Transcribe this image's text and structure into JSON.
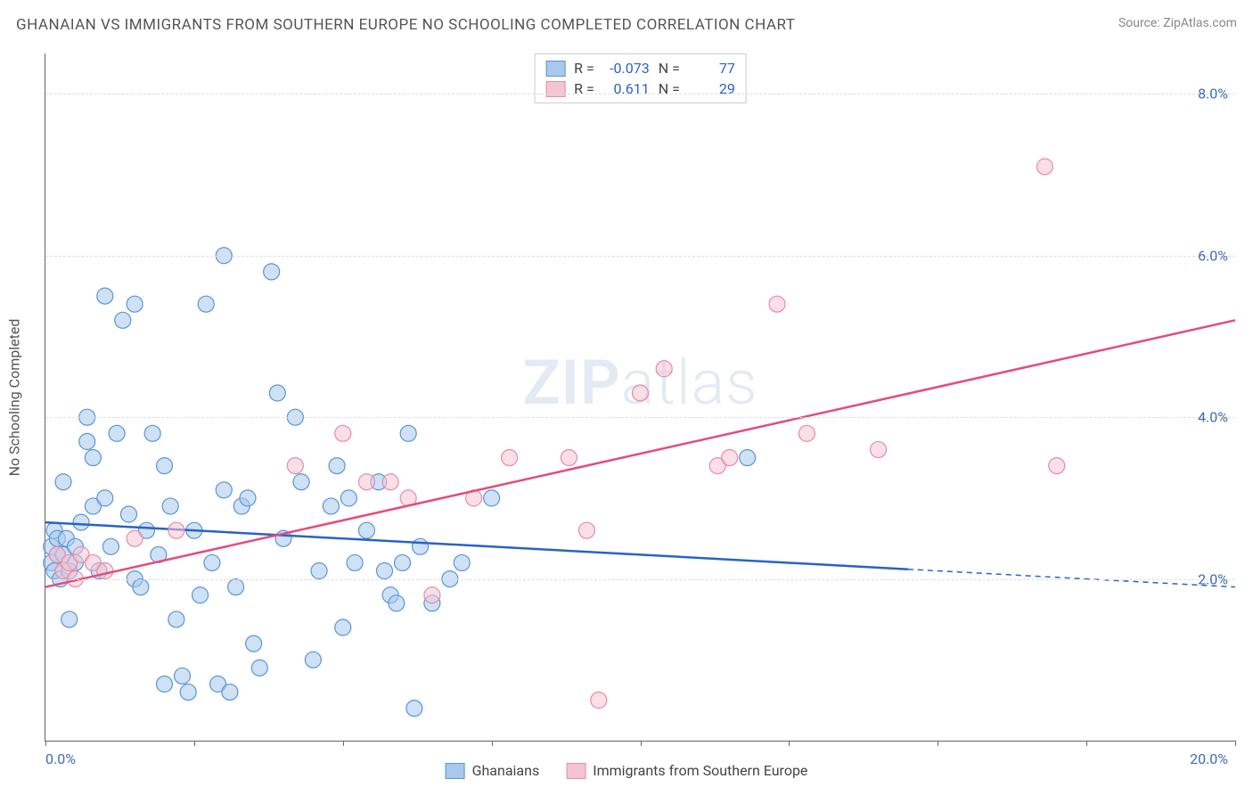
{
  "title": "GHANAIAN VS IMMIGRANTS FROM SOUTHERN EUROPE NO SCHOOLING COMPLETED CORRELATION CHART",
  "source_label": "Source: ZipAtlas.com",
  "y_axis_label": "No Schooling Completed",
  "watermark_zip": "ZIP",
  "watermark_atlas": "atlas",
  "chart": {
    "type": "scatter",
    "xlim": [
      0,
      20
    ],
    "ylim": [
      0,
      8.5
    ],
    "x_ticks": [
      0,
      2.5,
      5,
      7.5,
      10,
      12.5,
      15,
      17.5,
      20
    ],
    "x_tick_labels": {
      "0": "0.0%",
      "20": "20.0%"
    },
    "y_grid": [
      2,
      4,
      6,
      8
    ],
    "y_tick_labels": {
      "2": "2.0%",
      "4": "4.0%",
      "6": "6.0%",
      "8": "8.0%"
    },
    "background_color": "#ffffff",
    "grid_color": "#dddddd",
    "axis_color": "#666666",
    "tick_label_color": "#3b6db5",
    "marker_radius": 9,
    "marker_stroke_width": 1.2,
    "marker_fill_opacity": 0.25,
    "trend_line_width": 2.5,
    "series": [
      {
        "name": "Ghanaians",
        "color_fill": "#a8c8ec",
        "color_stroke": "#5a95d6",
        "trend_color": "#2863c7",
        "R": "-0.073",
        "N": "77",
        "trend": {
          "x1": 0,
          "y1": 2.7,
          "x2": 20,
          "y2": 1.9,
          "solid_until_x": 14.5
        },
        "points": [
          [
            0.1,
            2.4
          ],
          [
            0.1,
            2.2
          ],
          [
            0.15,
            2.1
          ],
          [
            0.15,
            2.6
          ],
          [
            0.2,
            2.5
          ],
          [
            0.2,
            2.3
          ],
          [
            0.25,
            2.0
          ],
          [
            0.3,
            3.2
          ],
          [
            0.3,
            2.3
          ],
          [
            0.35,
            2.5
          ],
          [
            0.4,
            1.5
          ],
          [
            0.4,
            2.1
          ],
          [
            0.5,
            2.4
          ],
          [
            0.5,
            2.2
          ],
          [
            0.6,
            2.7
          ],
          [
            0.7,
            4.0
          ],
          [
            0.7,
            3.7
          ],
          [
            0.8,
            2.9
          ],
          [
            0.8,
            3.5
          ],
          [
            0.9,
            2.1
          ],
          [
            1.0,
            5.5
          ],
          [
            1.0,
            3.0
          ],
          [
            1.1,
            2.4
          ],
          [
            1.2,
            3.8
          ],
          [
            1.3,
            5.2
          ],
          [
            1.5,
            5.4
          ],
          [
            1.5,
            2.0
          ],
          [
            1.6,
            1.9
          ],
          [
            1.7,
            2.6
          ],
          [
            1.8,
            3.8
          ],
          [
            1.9,
            2.3
          ],
          [
            2.0,
            3.4
          ],
          [
            2.1,
            2.9
          ],
          [
            2.2,
            1.5
          ],
          [
            2.3,
            0.8
          ],
          [
            2.4,
            0.6
          ],
          [
            2.5,
            2.6
          ],
          [
            2.6,
            1.8
          ],
          [
            2.7,
            5.4
          ],
          [
            2.8,
            2.2
          ],
          [
            2.9,
            0.7
          ],
          [
            3.0,
            6.0
          ],
          [
            3.0,
            3.1
          ],
          [
            3.1,
            0.6
          ],
          [
            3.2,
            1.9
          ],
          [
            3.3,
            2.9
          ],
          [
            3.4,
            3.0
          ],
          [
            3.5,
            1.2
          ],
          [
            3.6,
            0.9
          ],
          [
            3.8,
            5.8
          ],
          [
            3.9,
            4.3
          ],
          [
            4.0,
            2.5
          ],
          [
            4.2,
            4.0
          ],
          [
            4.3,
            3.2
          ],
          [
            4.5,
            1.0
          ],
          [
            4.6,
            2.1
          ],
          [
            4.8,
            2.9
          ],
          [
            4.9,
            3.4
          ],
          [
            5.0,
            1.4
          ],
          [
            5.1,
            3.0
          ],
          [
            5.2,
            2.2
          ],
          [
            5.4,
            2.6
          ],
          [
            5.6,
            3.2
          ],
          [
            5.7,
            2.1
          ],
          [
            5.8,
            1.8
          ],
          [
            5.9,
            1.7
          ],
          [
            6.0,
            2.2
          ],
          [
            6.1,
            3.8
          ],
          [
            6.2,
            0.4
          ],
          [
            6.3,
            2.4
          ],
          [
            6.5,
            1.7
          ],
          [
            6.8,
            2.0
          ],
          [
            7.0,
            2.2
          ],
          [
            7.5,
            3.0
          ],
          [
            11.8,
            3.5
          ],
          [
            2.0,
            0.7
          ],
          [
            1.4,
            2.8
          ]
        ]
      },
      {
        "name": "Immigrants from Southern Europe",
        "color_fill": "#f5c4d1",
        "color_stroke": "#e88ba8",
        "trend_color": "#e34d7a",
        "R": "0.611",
        "N": "29",
        "trend": {
          "x1": 0,
          "y1": 1.9,
          "x2": 20,
          "y2": 5.2,
          "solid_until_x": 20
        },
        "points": [
          [
            0.2,
            2.3
          ],
          [
            0.3,
            2.1
          ],
          [
            0.4,
            2.2
          ],
          [
            0.5,
            2.0
          ],
          [
            0.6,
            2.3
          ],
          [
            0.8,
            2.2
          ],
          [
            1.0,
            2.1
          ],
          [
            1.5,
            2.5
          ],
          [
            2.2,
            2.6
          ],
          [
            4.2,
            3.4
          ],
          [
            5.0,
            3.8
          ],
          [
            5.4,
            3.2
          ],
          [
            5.8,
            3.2
          ],
          [
            6.1,
            3.0
          ],
          [
            6.5,
            1.8
          ],
          [
            7.8,
            3.5
          ],
          [
            8.8,
            3.5
          ],
          [
            9.1,
            2.6
          ],
          [
            9.3,
            0.5
          ],
          [
            10.0,
            4.3
          ],
          [
            10.4,
            4.6
          ],
          [
            11.3,
            3.4
          ],
          [
            11.5,
            3.5
          ],
          [
            12.3,
            5.4
          ],
          [
            12.8,
            3.8
          ],
          [
            14.0,
            3.6
          ],
          [
            16.8,
            7.1
          ],
          [
            17.0,
            3.4
          ],
          [
            7.2,
            3.0
          ]
        ]
      }
    ]
  },
  "legend": {
    "series1": "Ghanaians",
    "series2": "Immigrants from Southern Europe"
  },
  "stats_labels": {
    "R": "R =",
    "N": "N ="
  }
}
